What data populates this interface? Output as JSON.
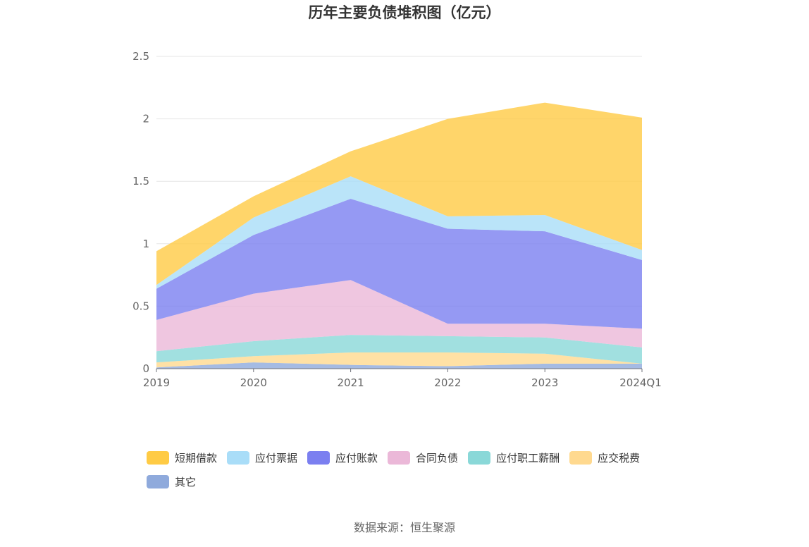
{
  "chart_data": {
    "type": "area",
    "stacked": true,
    "title": "历年主要负债堆积图（亿元）",
    "x": [
      "2019",
      "2020",
      "2021",
      "2022",
      "2023",
      "2024Q1"
    ],
    "yticks": [
      "0",
      "0.5",
      "1",
      "1.5",
      "2",
      "2.5"
    ],
    "ylim": [
      0,
      2.5
    ],
    "grid": true,
    "legend_position": "bottom",
    "series": [
      {
        "name": "其它",
        "color": "#8faadc",
        "values": [
          0.01,
          0.05,
          0.03,
          0.02,
          0.04,
          0.04
        ]
      },
      {
        "name": "应交税费",
        "color": "#ffd98f",
        "values": [
          0.04,
          0.05,
          0.1,
          0.11,
          0.08,
          0.0
        ]
      },
      {
        "name": "应付职工薪酬",
        "color": "#8ad8d8",
        "values": [
          0.09,
          0.12,
          0.14,
          0.13,
          0.13,
          0.13
        ]
      },
      {
        "name": "合同负债",
        "color": "#ebb8d8",
        "values": [
          0.25,
          0.38,
          0.44,
          0.1,
          0.11,
          0.15
        ]
      },
      {
        "name": "应付账款",
        "color": "#7b7ff0",
        "values": [
          0.25,
          0.47,
          0.65,
          0.76,
          0.74,
          0.55
        ]
      },
      {
        "name": "应付票据",
        "color": "#a9ddf8",
        "values": [
          0.03,
          0.14,
          0.18,
          0.1,
          0.13,
          0.08
        ]
      },
      {
        "name": "短期借款",
        "color": "#ffcb45",
        "values": [
          0.27,
          0.17,
          0.2,
          0.78,
          0.9,
          1.06
        ]
      }
    ],
    "legend_order": [
      "短期借款",
      "应付票据",
      "应付账款",
      "合同负债",
      "应付职工薪酬",
      "应交税费",
      "其它"
    ]
  },
  "footer": {
    "source": "数据来源：恒生聚源"
  }
}
